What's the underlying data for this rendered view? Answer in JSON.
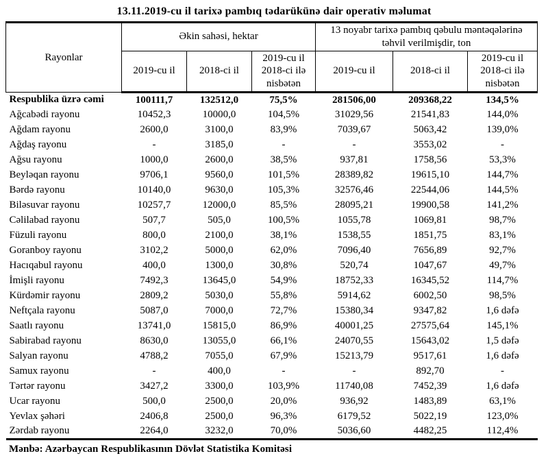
{
  "title": "13.11.2019-cu il tarixə pambıq tədarükünə dair operativ məlumat",
  "table": {
    "row_header": "Rayonlar",
    "group1": "Əkin sahəsi, hektar",
    "group2": "13 noyabr tarixə pambıq qəbulu məntəqələrinə təhvil verilmişdir, ton",
    "subcols": [
      "2019-cu il",
      "2018-ci il",
      "2019-cu il 2018-ci ilə nisbətən"
    ],
    "rows": [
      {
        "name": "Respublika üzrə cəmi",
        "bold": true,
        "values": [
          "100111,7",
          "132512,0",
          "75,5%",
          "281506,00",
          "209368,22",
          "134,5%"
        ]
      },
      {
        "name": "Ağcabədi rayonu",
        "bold": false,
        "values": [
          "10452,3",
          "10000,0",
          "104,5%",
          "31029,56",
          "21541,83",
          "144,0%"
        ]
      },
      {
        "name": "Ağdam rayonu",
        "bold": false,
        "values": [
          "2600,0",
          "3100,0",
          "83,9%",
          "7039,67",
          "5063,42",
          "139,0%"
        ]
      },
      {
        "name": "Ağdaş rayonu",
        "bold": false,
        "values": [
          "-",
          "3185,0",
          "-",
          "-",
          "3553,02",
          "-"
        ]
      },
      {
        "name": "Ağsu rayonu",
        "bold": false,
        "values": [
          "1000,0",
          "2600,0",
          "38,5%",
          "937,81",
          "1758,56",
          "53,3%"
        ]
      },
      {
        "name": "Beyləqan rayonu",
        "bold": false,
        "values": [
          "9706,1",
          "9560,0",
          "101,5%",
          "28389,82",
          "19615,10",
          "144,7%"
        ]
      },
      {
        "name": "Bərdə rayonu",
        "bold": false,
        "values": [
          "10140,0",
          "9630,0",
          "105,3%",
          "32576,46",
          "22544,06",
          "144,5%"
        ]
      },
      {
        "name": "Biləsuvar rayonu",
        "bold": false,
        "values": [
          "10257,7",
          "12000,0",
          "85,5%",
          "28095,21",
          "19900,58",
          "141,2%"
        ]
      },
      {
        "name": "Cəlilabad rayonu",
        "bold": false,
        "values": [
          "507,7",
          "505,0",
          "100,5%",
          "1055,78",
          "1069,81",
          "98,7%"
        ]
      },
      {
        "name": "Füzuli rayonu",
        "bold": false,
        "values": [
          "800,0",
          "2100,0",
          "38,1%",
          "1538,55",
          "1851,75",
          "83,1%"
        ]
      },
      {
        "name": "Goranboy rayonu",
        "bold": false,
        "values": [
          "3102,2",
          "5000,0",
          "62,0%",
          "7096,40",
          "7656,89",
          "92,7%"
        ]
      },
      {
        "name": "Hacıqabul rayonu",
        "bold": false,
        "values": [
          "400,0",
          "1300,0",
          "30,8%",
          "520,74",
          "1047,67",
          "49,7%"
        ]
      },
      {
        "name": "İmişli rayonu",
        "bold": false,
        "values": [
          "7492,3",
          "13645,0",
          "54,9%",
          "18752,33",
          "16345,52",
          "114,7%"
        ]
      },
      {
        "name": "Kürdəmir rayonu",
        "bold": false,
        "values": [
          "2809,2",
          "5030,0",
          "55,8%",
          "5914,62",
          "6002,50",
          "98,5%"
        ]
      },
      {
        "name": "Neftçala rayonu",
        "bold": false,
        "values": [
          "5087,0",
          "7000,0",
          "72,7%",
          "15380,34",
          "9347,82",
          "1,6 dəfə"
        ]
      },
      {
        "name": "Saatlı rayonu",
        "bold": false,
        "values": [
          "13741,0",
          "15815,0",
          "86,9%",
          "40001,25",
          "27575,64",
          "145,1%"
        ]
      },
      {
        "name": "Sabirabad rayonu",
        "bold": false,
        "values": [
          "8630,0",
          "13055,0",
          "66,1%",
          "24070,55",
          "15643,02",
          "1,5 dəfə"
        ]
      },
      {
        "name": "Salyan rayonu",
        "bold": false,
        "values": [
          "4788,2",
          "7055,0",
          "67,9%",
          "15213,79",
          "9517,61",
          "1,6 dəfə"
        ]
      },
      {
        "name": "Samux rayonu",
        "bold": false,
        "values": [
          "-",
          "400,0",
          "-",
          "-",
          "892,70",
          "-"
        ]
      },
      {
        "name": "Tərtər rayonu",
        "bold": false,
        "values": [
          "3427,2",
          "3300,0",
          "103,9%",
          "11740,08",
          "7452,39",
          "1,6 dəfə"
        ]
      },
      {
        "name": "Ucar rayonu",
        "bold": false,
        "values": [
          "500,0",
          "2500,0",
          "20,0%",
          "936,92",
          "1483,89",
          "63,1%"
        ]
      },
      {
        "name": "Yevlax şəhəri",
        "bold": false,
        "values": [
          "2406,8",
          "2500,0",
          "96,3%",
          "6179,52",
          "5022,19",
          "123,0%"
        ]
      },
      {
        "name": "Zərdab rayonu",
        "bold": false,
        "values": [
          "2264,0",
          "3232,0",
          "70,0%",
          "5036,60",
          "4482,25",
          "112,4%"
        ]
      }
    ]
  },
  "footer": "Mənbə: Azərbaycan Respublikasının Dövlət Statistika Komitəsi",
  "colors": {
    "text": "#000000",
    "background": "#ffffff",
    "border": "#000000"
  }
}
